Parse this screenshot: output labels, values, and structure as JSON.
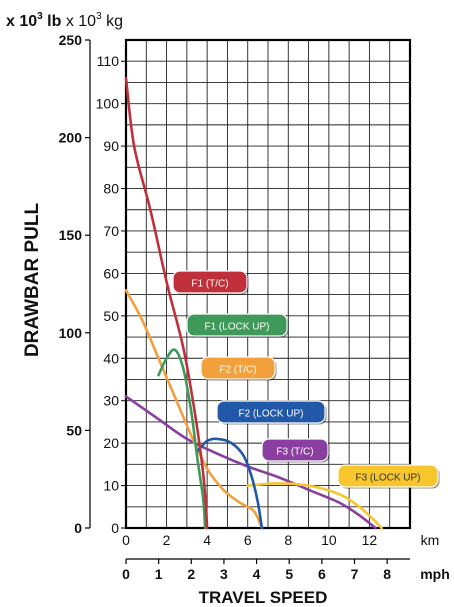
{
  "chart_data": {
    "type": "line",
    "title": "",
    "xlabel": "TRAVEL SPEED",
    "ylabel": "DRAWBAR PULL",
    "unit_header": {
      "left_prefix": "x 10",
      "left_exp": "3",
      "left_unit": " lb",
      "right_prefix": " x 10",
      "right_exp": "3",
      "right_unit": " kg"
    },
    "axes": {
      "x_km": {
        "unit": "km",
        "range": [
          0,
          14
        ],
        "ticks": [
          "0",
          "2",
          "4",
          "6",
          "8",
          "10",
          "12"
        ]
      },
      "x_mph": {
        "unit": "mph",
        "range": [
          0,
          8.7
        ],
        "ticks": [
          "0",
          "1",
          "2",
          "3",
          "4",
          "5",
          "6",
          "7",
          "8"
        ]
      },
      "y_kg": {
        "unit": "x 10^3 kg",
        "range": [
          0,
          115
        ],
        "ticks": [
          "0",
          "10",
          "20",
          "30",
          "40",
          "50",
          "60",
          "70",
          "80",
          "90",
          "100",
          "110"
        ]
      },
      "y_lb": {
        "unit": "x 10^3 lb",
        "range": [
          0,
          250
        ],
        "ticks": [
          "0",
          "50",
          "100",
          "150",
          "200",
          "250"
        ]
      }
    },
    "grid": true,
    "legend_position": "inline-right-of-curves",
    "series": [
      {
        "name": "F1 (T/C)",
        "color": "#c0303a",
        "points": [
          [
            0,
            106
          ],
          [
            0.4,
            90
          ],
          [
            1.2,
            75
          ],
          [
            2.0,
            58
          ],
          [
            2.8,
            43
          ],
          [
            3.3,
            30
          ],
          [
            3.7,
            17
          ],
          [
            3.9,
            8
          ],
          [
            4.0,
            0
          ]
        ]
      },
      {
        "name": "F1 (LOCK UP)",
        "color": "#3f9a59",
        "points": [
          [
            1.6,
            36
          ],
          [
            2.0,
            40
          ],
          [
            2.4,
            42
          ],
          [
            2.8,
            38
          ],
          [
            3.2,
            28
          ],
          [
            3.5,
            17
          ],
          [
            3.8,
            7
          ],
          [
            3.9,
            0
          ]
        ]
      },
      {
        "name": "F2 (T/C)",
        "color": "#f2a03c",
        "points": [
          [
            0,
            56
          ],
          [
            0.8,
            49
          ],
          [
            1.6,
            40
          ],
          [
            2.4,
            31
          ],
          [
            3.2,
            22
          ],
          [
            4.0,
            14
          ],
          [
            4.8,
            9
          ],
          [
            5.6,
            6
          ],
          [
            6.3,
            4
          ],
          [
            6.7,
            0
          ]
        ]
      },
      {
        "name": "F2 (LOCK UP)",
        "color": "#2258a8",
        "points": [
          [
            3.5,
            18
          ],
          [
            4.0,
            20.5
          ],
          [
            4.5,
            21
          ],
          [
            5.2,
            20
          ],
          [
            5.8,
            17
          ],
          [
            6.2,
            12
          ],
          [
            6.5,
            6
          ],
          [
            6.7,
            0
          ]
        ]
      },
      {
        "name": "F3 (T/C)",
        "color": "#8a3fa0",
        "points": [
          [
            0,
            31
          ],
          [
            1.5,
            26
          ],
          [
            3.0,
            21
          ],
          [
            4.5,
            17.5
          ],
          [
            6.0,
            14.5
          ],
          [
            7.5,
            12
          ],
          [
            9.0,
            9
          ],
          [
            10.5,
            6
          ],
          [
            11.5,
            3
          ],
          [
            12.3,
            0
          ]
        ]
      },
      {
        "name": "F3 (LOCK UP)",
        "color": "#f7c52c",
        "points": [
          [
            6.0,
            10
          ],
          [
            7.5,
            10.5
          ],
          [
            9.0,
            10
          ],
          [
            10.5,
            8
          ],
          [
            11.5,
            5
          ],
          [
            12.2,
            2
          ],
          [
            12.6,
            0
          ]
        ]
      }
    ]
  }
}
